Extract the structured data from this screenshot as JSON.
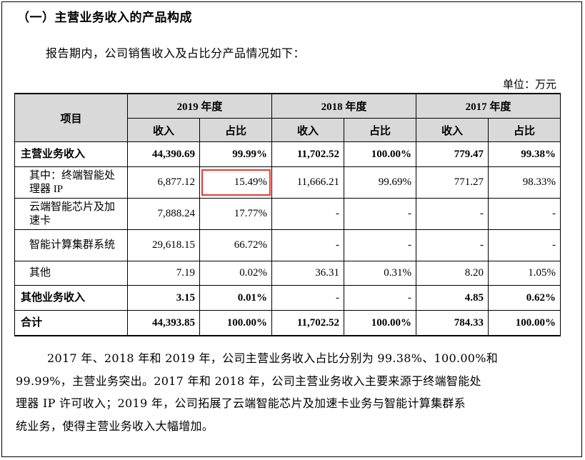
{
  "heading": "（一）主营业务收入的产品构成",
  "intro": "报告期内，公司销售收入及占比分产品情况如下：",
  "unit": "单位：万元",
  "table": {
    "item_header": "项目",
    "years": [
      "2019 年度",
      "2018 年度",
      "2017 年度"
    ],
    "sub_headers": [
      "收入",
      "占比",
      "收入",
      "占比",
      "收入",
      "占比"
    ],
    "rows": [
      {
        "label": "主营业务收入",
        "values": [
          "44,390.69",
          "99.99%",
          "11,702.52",
          "100.00%",
          "779.47",
          "99.38%"
        ]
      },
      {
        "label": "其中：终端智能处理器 IP",
        "values": [
          "6,877.12",
          "15.49%",
          "11,666.21",
          "99.69%",
          "771.27",
          "98.33%"
        ]
      },
      {
        "label": "云端智能芯片及加速卡",
        "values": [
          "7,888.24",
          "17.77%",
          "-",
          "-",
          "-",
          "-"
        ]
      },
      {
        "label": "智能计算集群系统",
        "values": [
          "29,618.15",
          "66.72%",
          "-",
          "-",
          "-",
          "-"
        ]
      },
      {
        "label": "其他",
        "values": [
          "7.19",
          "0.02%",
          "36.31",
          "0.31%",
          "8.20",
          "1.05%"
        ]
      },
      {
        "label": "其他业务收入",
        "values": [
          "3.15",
          "0.01%",
          "-",
          "-",
          "4.85",
          "0.62%"
        ]
      },
      {
        "label": "合计",
        "values": [
          "44,393.85",
          "100.00%",
          "11,702.52",
          "100.00%",
          "784.33",
          "100.00%"
        ]
      }
    ]
  },
  "paragraph": [
    "2017 年、2018 年和 2019 年，公司主营业务收入占比分别为 99.38%、100.00%和",
    "99.99%，主营业务突出。2017 年和 2018 年，公司主营业务收入主要来源于终端智能处",
    "理器 IP 许可收入；2019 年，公司拓展了云端智能芯片及加速卡业务与智能计算集群系",
    "统业务，使得主营业务收入大幅增加。"
  ],
  "colors": {
    "highlight": "#e53935",
    "header_bg": "#d9d9d9"
  }
}
